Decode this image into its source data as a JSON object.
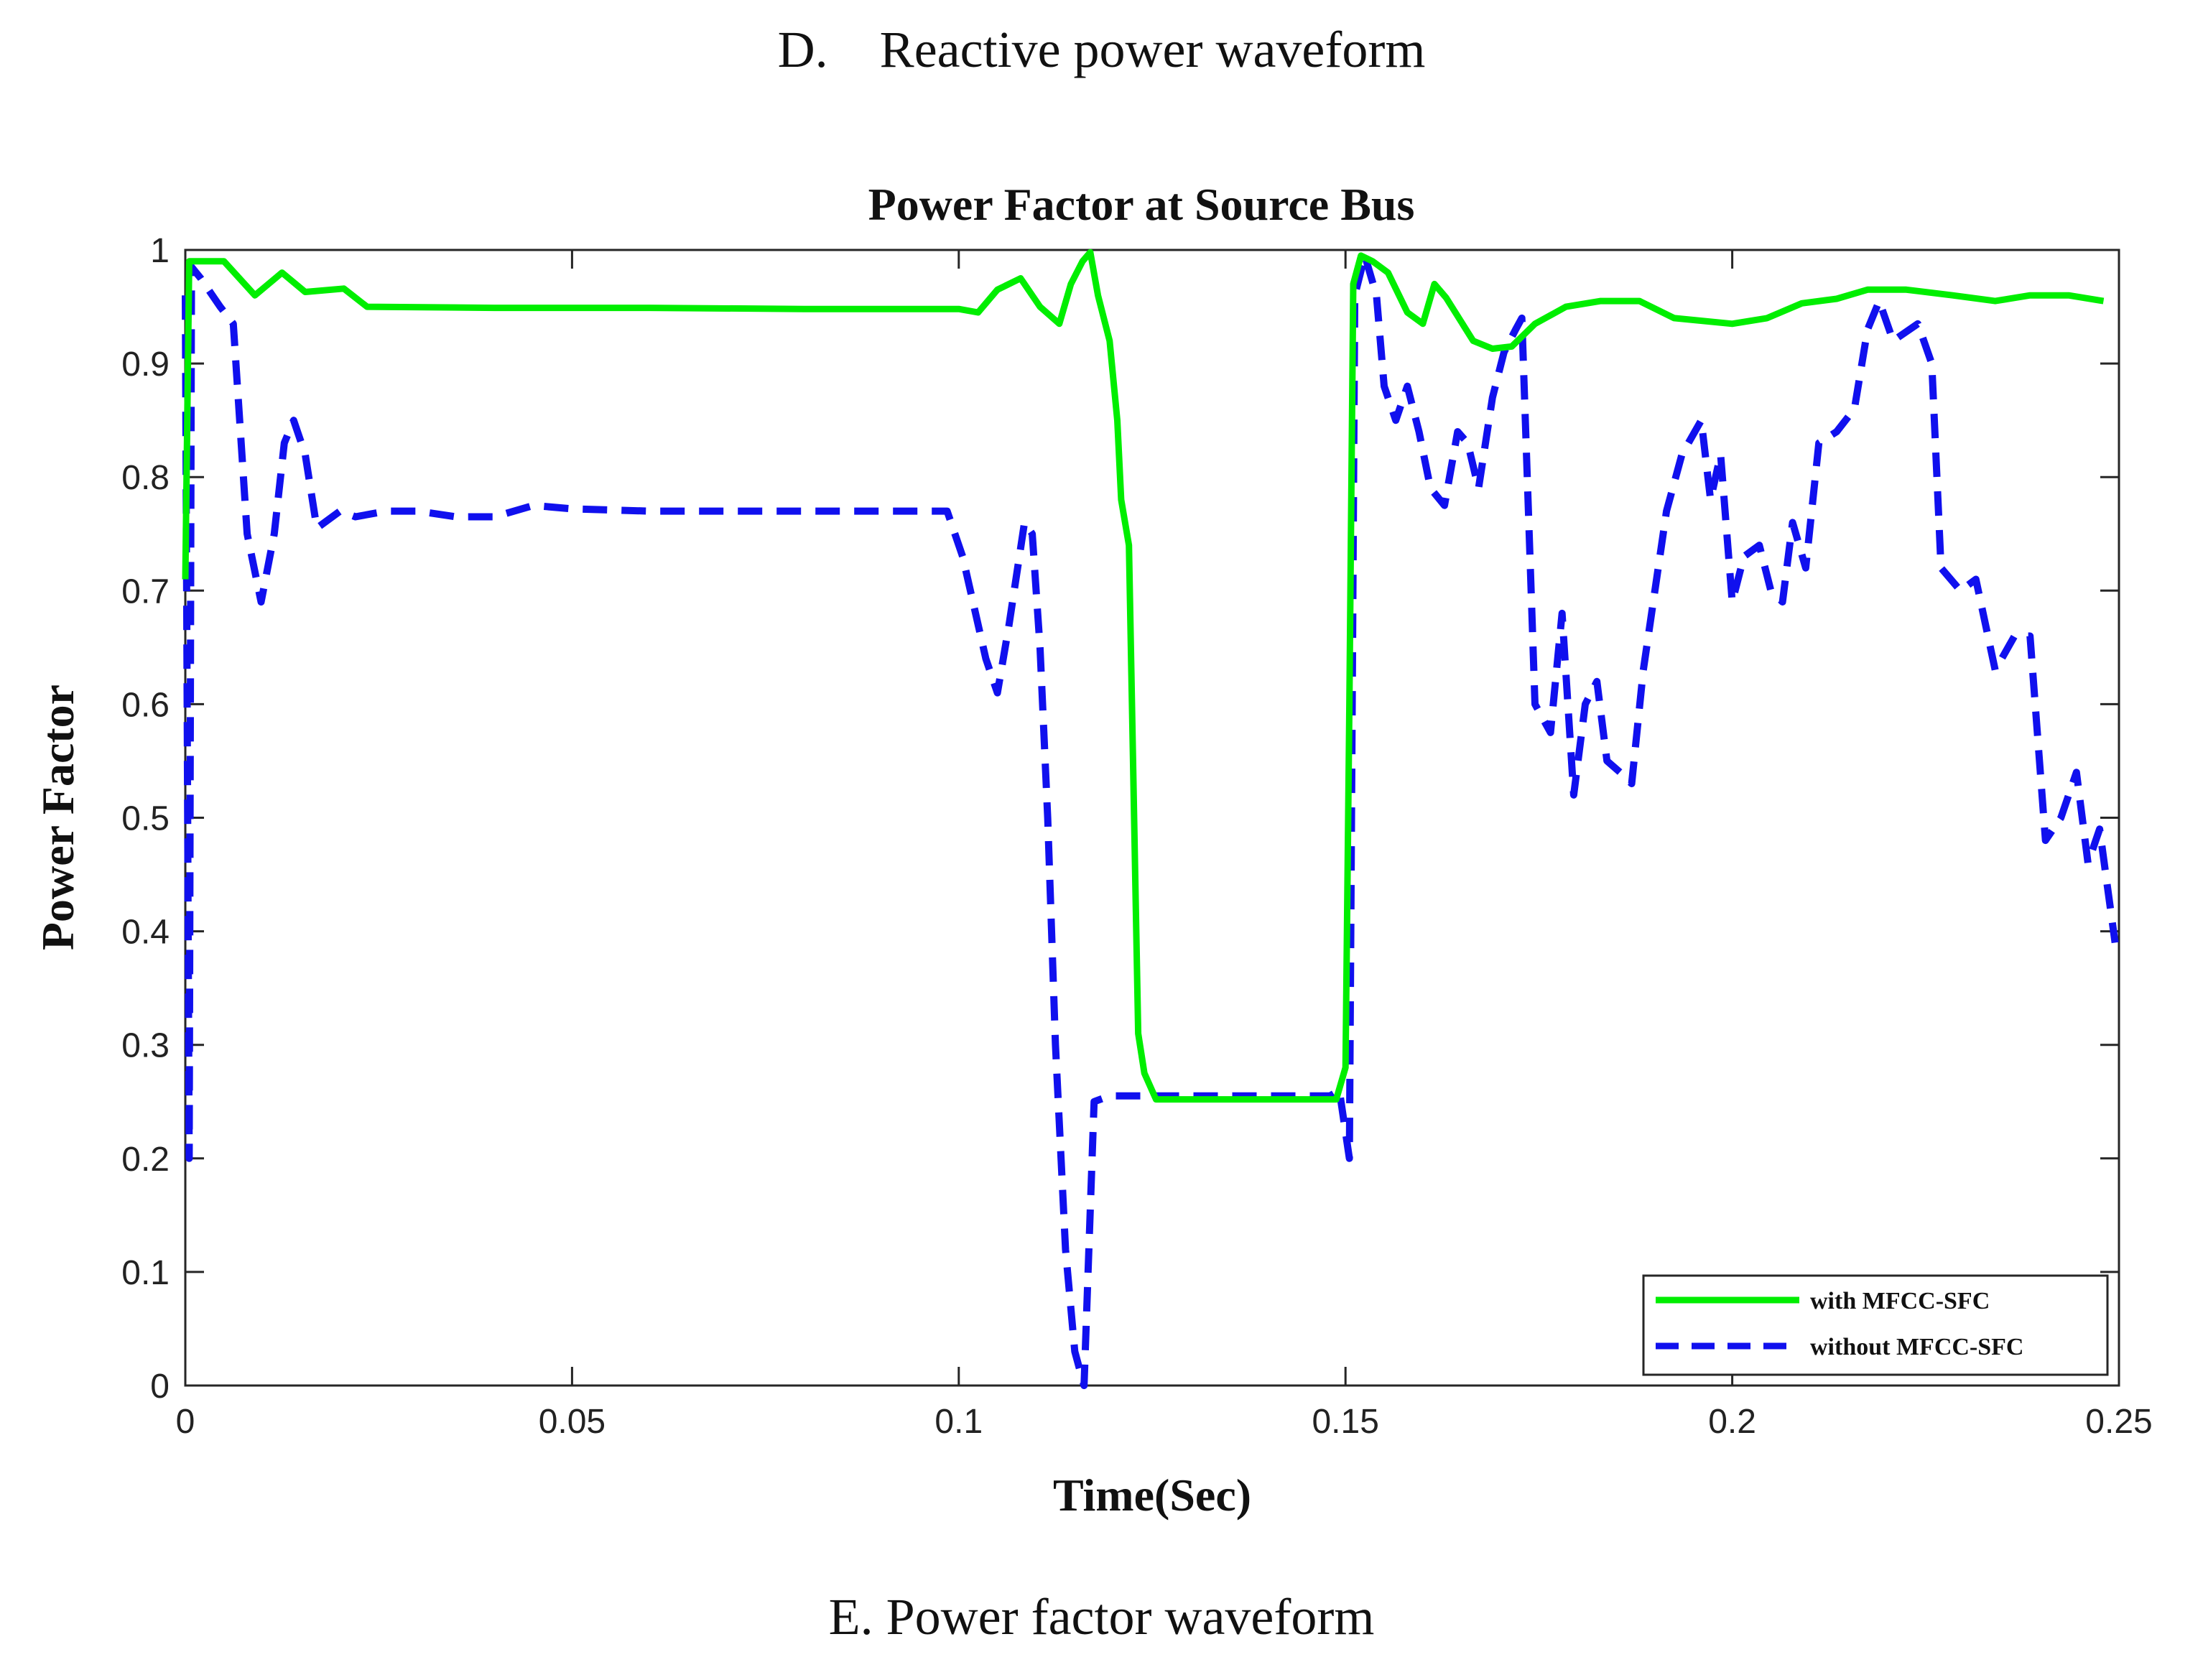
{
  "captions": {
    "top": "D.    Reactive power waveform",
    "bottom": "E. Power factor waveform"
  },
  "chart_data": {
    "type": "line",
    "title": "Power Factor at Source Bus",
    "xlabel": "Time(Sec)",
    "ylabel": "Power Factor",
    "xlim": [
      0,
      0.25
    ],
    "ylim": [
      0,
      1
    ],
    "xticks": [
      0,
      0.05,
      0.1,
      0.15,
      0.2,
      0.25
    ],
    "xtick_labels": [
      "0",
      "0.05",
      "0.1",
      "0.15",
      "0.2",
      "0.25"
    ],
    "yticks": [
      0,
      0.1,
      0.2,
      0.3,
      0.4,
      0.5,
      0.6,
      0.7,
      0.8,
      0.9,
      1
    ],
    "ytick_labels": [
      "0",
      "0.1",
      "0.2",
      "0.3",
      "0.4",
      "0.5",
      "0.6",
      "0.7",
      "0.8",
      "0.9",
      "1"
    ],
    "grid": false,
    "legend_position": "bottom-right",
    "series": [
      {
        "name": "with MFCC-SFC",
        "color": "#00ee00",
        "style": "solid",
        "points": [
          [
            0,
            0.71
          ],
          [
            0.0005,
            0.99
          ],
          [
            0.002,
            0.99
          ],
          [
            0.005,
            0.99
          ],
          [
            0.009,
            0.96
          ],
          [
            0.0125,
            0.98
          ],
          [
            0.0155,
            0.963
          ],
          [
            0.0205,
            0.966
          ],
          [
            0.0235,
            0.95
          ],
          [
            0.04,
            0.949
          ],
          [
            0.06,
            0.949
          ],
          [
            0.08,
            0.948
          ],
          [
            0.1,
            0.948
          ],
          [
            0.1025,
            0.945
          ],
          [
            0.105,
            0.965
          ],
          [
            0.108,
            0.975
          ],
          [
            0.1105,
            0.95
          ],
          [
            0.113,
            0.935
          ],
          [
            0.1145,
            0.97
          ],
          [
            0.116,
            0.99
          ],
          [
            0.117,
            0.998
          ],
          [
            0.118,
            0.96
          ],
          [
            0.1195,
            0.92
          ],
          [
            0.1205,
            0.85
          ],
          [
            0.121,
            0.78
          ],
          [
            0.122,
            0.74
          ],
          [
            0.1225,
            0.56
          ],
          [
            0.1232,
            0.31
          ],
          [
            0.124,
            0.275
          ],
          [
            0.1255,
            0.252
          ],
          [
            0.13,
            0.252
          ],
          [
            0.14,
            0.252
          ],
          [
            0.1488,
            0.252
          ],
          [
            0.15,
            0.28
          ],
          [
            0.1505,
            0.6
          ],
          [
            0.151,
            0.97
          ],
          [
            0.152,
            0.995
          ],
          [
            0.1535,
            0.99
          ],
          [
            0.1555,
            0.98
          ],
          [
            0.158,
            0.945
          ],
          [
            0.16,
            0.935
          ],
          [
            0.1615,
            0.97
          ],
          [
            0.163,
            0.958
          ],
          [
            0.1665,
            0.92
          ],
          [
            0.169,
            0.913
          ],
          [
            0.1715,
            0.915
          ],
          [
            0.1745,
            0.935
          ],
          [
            0.1785,
            0.95
          ],
          [
            0.183,
            0.955
          ],
          [
            0.188,
            0.955
          ],
          [
            0.1925,
            0.94
          ],
          [
            0.2,
            0.935
          ],
          [
            0.2045,
            0.94
          ],
          [
            0.209,
            0.953
          ],
          [
            0.2135,
            0.957
          ],
          [
            0.2175,
            0.965
          ],
          [
            0.2225,
            0.965
          ],
          [
            0.2285,
            0.96
          ],
          [
            0.234,
            0.955
          ],
          [
            0.2385,
            0.96
          ],
          [
            0.2435,
            0.96
          ],
          [
            0.248,
            0.955
          ]
        ]
      },
      {
        "name": "without MFCC-SFC",
        "color": "#1010ee",
        "style": "dashed",
        "points": [
          [
            0.0,
            0.96
          ],
          [
            0.0005,
            0.2
          ],
          [
            0.0008,
            0.985
          ],
          [
            0.002,
            0.975
          ],
          [
            0.0045,
            0.95
          ],
          [
            0.0062,
            0.935
          ],
          [
            0.008,
            0.75
          ],
          [
            0.0098,
            0.69
          ],
          [
            0.0115,
            0.75
          ],
          [
            0.0128,
            0.83
          ],
          [
            0.014,
            0.85
          ],
          [
            0.0155,
            0.82
          ],
          [
            0.017,
            0.755
          ],
          [
            0.02,
            0.77
          ],
          [
            0.022,
            0.765
          ],
          [
            0.026,
            0.77
          ],
          [
            0.03,
            0.77
          ],
          [
            0.035,
            0.765
          ],
          [
            0.04,
            0.765
          ],
          [
            0.045,
            0.775
          ],
          [
            0.05,
            0.772
          ],
          [
            0.06,
            0.77
          ],
          [
            0.07,
            0.77
          ],
          [
            0.08,
            0.77
          ],
          [
            0.09,
            0.77
          ],
          [
            0.0985,
            0.77
          ],
          [
            0.1005,
            0.73
          ],
          [
            0.1035,
            0.64
          ],
          [
            0.105,
            0.61
          ],
          [
            0.1065,
            0.67
          ],
          [
            0.1085,
            0.76
          ],
          [
            0.1095,
            0.75
          ],
          [
            0.1105,
            0.65
          ],
          [
            0.1115,
            0.5
          ],
          [
            0.1125,
            0.3
          ],
          [
            0.1138,
            0.12
          ],
          [
            0.115,
            0.03
          ],
          [
            0.1162,
            0.0
          ],
          [
            0.1175,
            0.25
          ],
          [
            0.1195,
            0.255
          ],
          [
            0.124,
            0.255
          ],
          [
            0.13,
            0.255
          ],
          [
            0.14,
            0.255
          ],
          [
            0.148,
            0.255
          ],
          [
            0.1492,
            0.26
          ],
          [
            0.1505,
            0.2
          ],
          [
            0.1512,
            0.96
          ],
          [
            0.1525,
            0.995
          ],
          [
            0.154,
            0.96
          ],
          [
            0.155,
            0.88
          ],
          [
            0.1565,
            0.85
          ],
          [
            0.158,
            0.88
          ],
          [
            0.1595,
            0.84
          ],
          [
            0.161,
            0.79
          ],
          [
            0.1628,
            0.775
          ],
          [
            0.1645,
            0.84
          ],
          [
            0.1658,
            0.83
          ],
          [
            0.1672,
            0.79
          ],
          [
            0.169,
            0.87
          ],
          [
            0.1705,
            0.91
          ],
          [
            0.172,
            0.93
          ],
          [
            0.1728,
            0.94
          ],
          [
            0.1745,
            0.6
          ],
          [
            0.1765,
            0.575
          ],
          [
            0.178,
            0.68
          ],
          [
            0.1795,
            0.52
          ],
          [
            0.181,
            0.6
          ],
          [
            0.1825,
            0.62
          ],
          [
            0.1838,
            0.55
          ],
          [
            0.1855,
            0.54
          ],
          [
            0.187,
            0.53
          ],
          [
            0.1885,
            0.63
          ],
          [
            0.1915,
            0.77
          ],
          [
            0.1935,
            0.82
          ],
          [
            0.196,
            0.85
          ],
          [
            0.1972,
            0.78
          ],
          [
            0.1985,
            0.82
          ],
          [
            0.2,
            0.69
          ],
          [
            0.2015,
            0.73
          ],
          [
            0.2035,
            0.74
          ],
          [
            0.205,
            0.7
          ],
          [
            0.2065,
            0.69
          ],
          [
            0.2078,
            0.76
          ],
          [
            0.2095,
            0.72
          ],
          [
            0.2112,
            0.83
          ],
          [
            0.2135,
            0.84
          ],
          [
            0.2158,
            0.86
          ],
          [
            0.2175,
            0.93
          ],
          [
            0.219,
            0.955
          ],
          [
            0.2208,
            0.92
          ],
          [
            0.224,
            0.935
          ],
          [
            0.2258,
            0.9
          ],
          [
            0.227,
            0.72
          ],
          [
            0.2295,
            0.7
          ],
          [
            0.2315,
            0.71
          ],
          [
            0.234,
            0.63
          ],
          [
            0.2365,
            0.66
          ],
          [
            0.2385,
            0.66
          ],
          [
            0.2405,
            0.48
          ],
          [
            0.2425,
            0.5
          ],
          [
            0.2445,
            0.54
          ],
          [
            0.246,
            0.46
          ],
          [
            0.2475,
            0.49
          ],
          [
            0.2485,
            0.44
          ],
          [
            0.2495,
            0.39
          ]
        ]
      }
    ]
  }
}
